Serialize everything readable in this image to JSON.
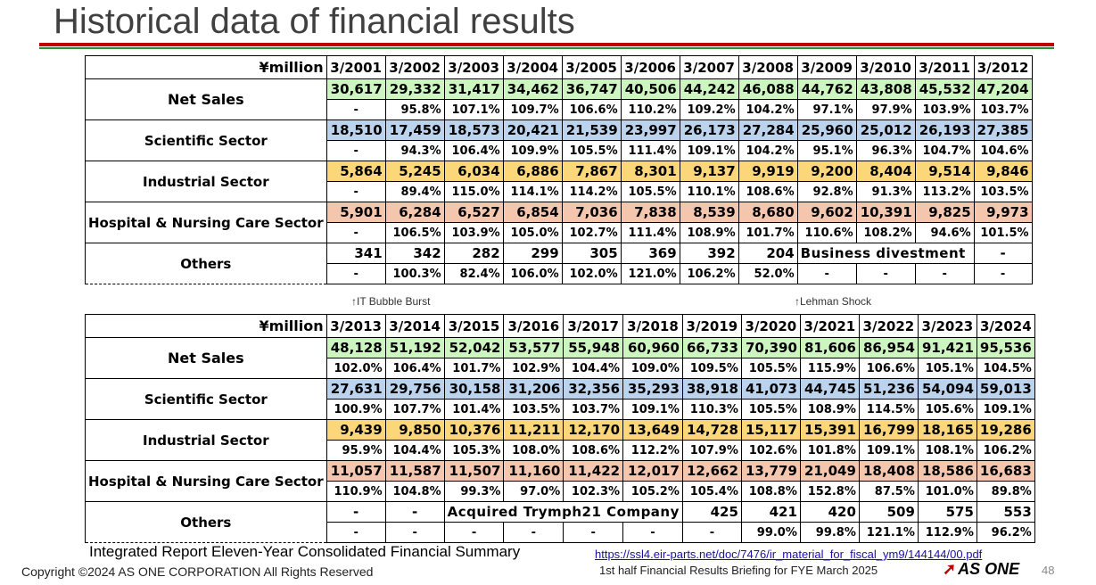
{
  "title": "Historical data of financial results",
  "unit_label": "¥million",
  "table1": {
    "years": [
      "3/2001",
      "3/2002",
      "3/2003",
      "3/2004",
      "3/2005",
      "3/2006",
      "3/2007",
      "3/2008",
      "3/2009",
      "3/2010",
      "3/2011",
      "3/2012"
    ],
    "net_sales": {
      "label": "Net Sales",
      "values": [
        "30,617",
        "29,332",
        "31,417",
        "34,462",
        "36,747",
        "40,506",
        "44,242",
        "46,088",
        "44,762",
        "43,808",
        "45,532",
        "47,204"
      ],
      "pct": [
        "-",
        "95.8%",
        "107.1%",
        "109.7%",
        "106.6%",
        "110.2%",
        "109.2%",
        "104.2%",
        "97.1%",
        "97.9%",
        "103.9%",
        "103.7%"
      ]
    },
    "scientific": {
      "label": "Scientific Sector",
      "values": [
        "18,510",
        "17,459",
        "18,573",
        "20,421",
        "21,539",
        "23,997",
        "26,173",
        "27,284",
        "25,960",
        "25,012",
        "26,193",
        "27,385"
      ],
      "pct": [
        "-",
        "94.3%",
        "106.4%",
        "109.9%",
        "105.5%",
        "111.4%",
        "109.1%",
        "104.2%",
        "95.1%",
        "96.3%",
        "104.7%",
        "104.6%"
      ]
    },
    "industrial": {
      "label": "Industrial Sector",
      "values": [
        "5,864",
        "5,245",
        "6,034",
        "6,886",
        "7,867",
        "8,301",
        "9,137",
        "9,919",
        "9,200",
        "8,404",
        "9,514",
        "9,846"
      ],
      "pct": [
        "-",
        "89.4%",
        "115.0%",
        "114.1%",
        "114.2%",
        "105.5%",
        "110.1%",
        "108.6%",
        "92.8%",
        "91.3%",
        "113.2%",
        "103.5%"
      ]
    },
    "hospital": {
      "label": "Hospital & Nursing Care Sector",
      "values": [
        "5,901",
        "6,284",
        "6,527",
        "6,854",
        "7,036",
        "7,838",
        "8,539",
        "8,680",
        "9,602",
        "10,391",
        "9,825",
        "9,973"
      ],
      "pct": [
        "-",
        "106.5%",
        "103.9%",
        "105.0%",
        "102.7%",
        "111.4%",
        "108.9%",
        "101.7%",
        "110.6%",
        "108.2%",
        "94.6%",
        "101.5%"
      ]
    },
    "others": {
      "label": "Others",
      "values": [
        "341",
        "342",
        "282",
        "299",
        "305",
        "369",
        "392",
        "204"
      ],
      "note": "Business divestment",
      "last_value": "-",
      "pct": [
        "-",
        "100.3%",
        "82.4%",
        "106.0%",
        "102.0%",
        "121.0%",
        "106.2%",
        "52.0%",
        "-",
        "-",
        "-",
        "-"
      ]
    }
  },
  "notes": {
    "it_bubble": "↑IT Bubble Burst",
    "lehman": "↑Lehman Shock"
  },
  "table2": {
    "years": [
      "3/2013",
      "3/2014",
      "3/2015",
      "3/2016",
      "3/2017",
      "3/2018",
      "3/2019",
      "3/2020",
      "3/2021",
      "3/2022",
      "3/2023",
      "3/2024"
    ],
    "net_sales": {
      "label": "Net Sales",
      "values": [
        "48,128",
        "51,192",
        "52,042",
        "53,577",
        "55,948",
        "60,960",
        "66,733",
        "70,390",
        "81,606",
        "86,954",
        "91,421",
        "95,536"
      ],
      "pct": [
        "102.0%",
        "106.4%",
        "101.7%",
        "102.9%",
        "104.4%",
        "109.0%",
        "109.5%",
        "105.5%",
        "115.9%",
        "106.6%",
        "105.1%",
        "104.5%"
      ]
    },
    "scientific": {
      "label": "Scientific Sector",
      "values": [
        "27,631",
        "29,756",
        "30,158",
        "31,206",
        "32,356",
        "35,293",
        "38,918",
        "41,073",
        "44,745",
        "51,236",
        "54,094",
        "59,013"
      ],
      "pct": [
        "100.9%",
        "107.7%",
        "101.4%",
        "103.5%",
        "103.7%",
        "109.1%",
        "110.3%",
        "105.5%",
        "108.9%",
        "114.5%",
        "105.6%",
        "109.1%"
      ]
    },
    "industrial": {
      "label": "Industrial Sector",
      "values": [
        "9,439",
        "9,850",
        "10,376",
        "11,211",
        "12,170",
        "13,649",
        "14,728",
        "15,117",
        "15,391",
        "16,799",
        "18,165",
        "19,286"
      ],
      "pct": [
        "95.9%",
        "104.4%",
        "105.3%",
        "108.0%",
        "108.6%",
        "112.2%",
        "107.9%",
        "102.6%",
        "101.8%",
        "109.1%",
        "108.1%",
        "106.2%"
      ]
    },
    "hospital": {
      "label": "Hospital & Nursing Care Sector",
      "values": [
        "11,057",
        "11,587",
        "11,507",
        "11,160",
        "11,422",
        "12,017",
        "12,662",
        "13,779",
        "21,049",
        "18,408",
        "18,586",
        "16,683"
      ],
      "pct": [
        "110.9%",
        "104.8%",
        "99.3%",
        "97.0%",
        "102.3%",
        "105.2%",
        "105.4%",
        "108.8%",
        "152.8%",
        "87.5%",
        "101.0%",
        "89.8%"
      ]
    },
    "others": {
      "label": "Others",
      "first_values": [
        "-",
        "-"
      ],
      "note": "Acquired Trymph21 Company",
      "values": [
        "425",
        "421",
        "420",
        "509",
        "575",
        "553"
      ],
      "pct": [
        "-",
        "-",
        "-",
        "-",
        "-",
        "-",
        "-",
        "99.0%",
        "99.8%",
        "121.1%",
        "112.9%",
        "96.2%"
      ]
    }
  },
  "footer": {
    "integrated_report": "Integrated Report Eleven-Year Consolidated Financial Summary",
    "link": "https://ssl4.eir-parts.net/doc/7476/ir_material_for_fiscal_ym9/144144/00.pdf",
    "copyright": "Copyright ©2024 AS ONE CORPORATION All Rights Reserved",
    "briefing": "1st half Financial Results Briefing for FYE March 2025",
    "logo": "AS ONE",
    "page": "48"
  },
  "colors": {
    "net_sales": "#ccf5c0",
    "scientific": "#bcd3ee",
    "industrial": "#fcd77a",
    "hospital": "#f5c6ae",
    "title_bar_red": "#c00000",
    "title_bar_green": "#2e8b3a"
  }
}
